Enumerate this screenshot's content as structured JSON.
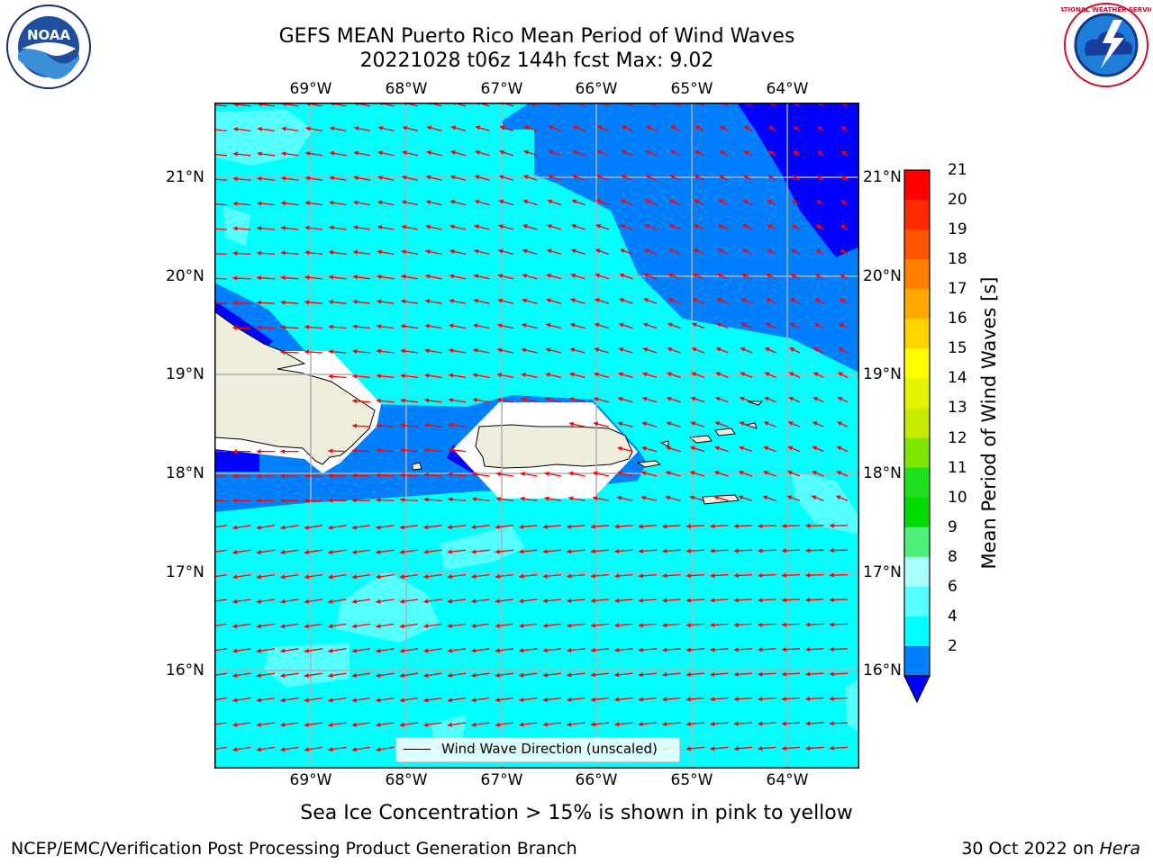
{
  "title": {
    "line1": "GEFS MEAN Puerto Rico Mean Period of Wind Waves",
    "line2": "20221028 t06z 144h fcst   Max: 9.02"
  },
  "axes": {
    "lon_labels": [
      "69°W",
      "68°W",
      "67°W",
      "66°W",
      "65°W",
      "64°W"
    ],
    "lat_labels": [
      "21°N",
      "20°N",
      "19°N",
      "18°N",
      "17°N",
      "16°N"
    ]
  },
  "legend": {
    "label": "Wind Wave Direction (unscaled)"
  },
  "colorbar": {
    "label": "Mean Period of Wind Waves [s]",
    "ticks": [
      "21",
      "20",
      "19",
      "18",
      "17",
      "16",
      "15",
      "14",
      "13",
      "12",
      "11",
      "10",
      "9",
      "8",
      "6",
      "4",
      "2"
    ],
    "colors": [
      "#ff0000",
      "#ff2a00",
      "#ff5500",
      "#ff8000",
      "#ffaa00",
      "#ffd400",
      "#ffff00",
      "#e3f500",
      "#c8ea00",
      "#7de600",
      "#1ee01e",
      "#00dc00",
      "#4ff07a",
      "#aaffff",
      "#55ffff",
      "#00ffff",
      "#0080ff"
    ],
    "under_color": "#0000ff"
  },
  "map": {
    "land_color": "#efeddc",
    "sea_colors": {
      "p2_4": "#0080ff",
      "p4_6": "#00ffff",
      "p6_8": "#55ffff",
      "p8_9": "#aaffff",
      "below": "#0000ff"
    },
    "arrow_color": "#ff0000",
    "grid_color": "#b0b0b0"
  },
  "notes": {
    "sea_ice": "Sea Ice Concentration > 15% is shown in pink to yellow"
  },
  "footer": {
    "left": "NCEP/EMC/Verification Post Processing Product Generation Branch",
    "right_date": "30 Oct 2022 on ",
    "right_host": "Hera"
  },
  "logos": {
    "noaa": "NOAA",
    "nws": "NATIONAL WEATHER SERVICE"
  }
}
